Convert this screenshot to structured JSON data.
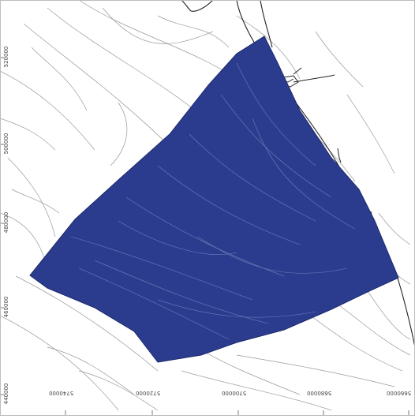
{
  "map": {
    "y_axis_labels": [
      "520000",
      "500000",
      "480000",
      "460000",
      "440000"
    ],
    "x_axis_labels": [
      "5740000",
      "5720000",
      "5700000",
      "5680000",
      "5660000"
    ],
    "colors": {
      "survey_area": "#2b3c8f",
      "contours": "#9a9a9a",
      "coastline": "#222222",
      "background": "#ffffff"
    }
  }
}
